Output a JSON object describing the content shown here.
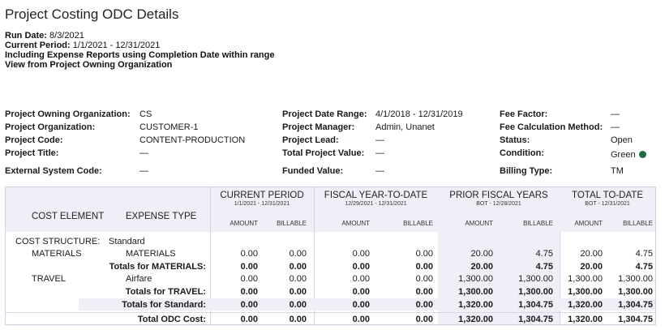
{
  "title": "Project Costing ODC Details",
  "run": {
    "run_date_label": "Run Date:",
    "run_date": "8/3/2021",
    "period_label": "Current Period:",
    "period": "1/1/2021 - 12/31/2021",
    "line3": "Including Expense Reports using Completion Date within range",
    "line4": "View from Project Owning Organization"
  },
  "info": [
    {
      "label": "Project Owning Organization:",
      "value": "CS"
    },
    {
      "label": "Project Organization:",
      "value": "CUSTOMER-1"
    },
    {
      "label": "Project Code:",
      "value": "CONTENT-PRODUCTION"
    },
    {
      "label": "Project Title:",
      "value": "—"
    },
    {
      "label": "External System Code:",
      "value": "—"
    },
    {
      "label": "Project Date Range:",
      "value": "4/1/2018 - 12/31/2019"
    },
    {
      "label": "Project Manager:",
      "value": "Admin, Unanet"
    },
    {
      "label": "Project Lead:",
      "value": "—"
    },
    {
      "label": "Total Project Value:",
      "value": "—"
    },
    {
      "label": "Funded Value:",
      "value": "—"
    },
    {
      "label": "Fee Factor:",
      "value": "—"
    },
    {
      "label": "Fee Calculation Method:",
      "value": "—"
    },
    {
      "label": "Status:",
      "value": "Open"
    },
    {
      "label": "Condition:",
      "value": "Green"
    },
    {
      "label": "Billing Type:",
      "value": "TM"
    }
  ],
  "colors": {
    "band": "#f0eff8",
    "condition_green": "#1e6b43"
  },
  "table": {
    "cost_element_header": "COST ELEMENT",
    "expense_type_header": "EXPENSE TYPE",
    "groups": [
      {
        "title": "CURRENT PERIOD",
        "range": "1/1/2021 - 12/31/2021"
      },
      {
        "title": "FISCAL YEAR-TO-DATE",
        "range": "12/29/2021 - 12/31/2021"
      },
      {
        "title": "PRIOR FISCAL YEARS",
        "range": "BOT - 12/28/2021"
      },
      {
        "title": "TOTAL TO-DATE",
        "range": "BOT - 12/31/2021"
      }
    ],
    "amount_label": "AMOUNT",
    "billable_label": "BILLABLE",
    "cost_structure_label": "COST STRUCTURE:",
    "cost_structure_value": "Standard",
    "rows": [
      {
        "element": "MATERIALS",
        "type": "MATERIALS",
        "bold": false,
        "values": [
          "0.00",
          "0.00",
          "0.00",
          "0.00",
          "20.00",
          "4.75",
          "20.00",
          "4.75"
        ]
      },
      {
        "element": "",
        "type": "Totals for MATERIALS:",
        "bold": true,
        "values": [
          "0.00",
          "0.00",
          "0.00",
          "0.00",
          "20.00",
          "4.75",
          "20.00",
          "4.75"
        ]
      },
      {
        "element": "TRAVEL",
        "type": "Airfare",
        "bold": false,
        "values": [
          "0.00",
          "0.00",
          "0.00",
          "0.00",
          "1,300.00",
          "1,300.00",
          "1,300.00",
          "1,300.00"
        ]
      },
      {
        "element": "",
        "type": "Totals for TRAVEL:",
        "bold": true,
        "values": [
          "0.00",
          "0.00",
          "0.00",
          "0.00",
          "1,300.00",
          "1,300.00",
          "1,300.00",
          "1,300.00"
        ]
      },
      {
        "element": "",
        "type": "Totals for Standard:",
        "bold": true,
        "values": [
          "0.00",
          "0.00",
          "0.00",
          "0.00",
          "1,320.00",
          "1,304.75",
          "1,320.00",
          "1,304.75"
        ]
      },
      {
        "element": "",
        "type": "Total ODC Cost:",
        "bold": true,
        "values": [
          "0.00",
          "0.00",
          "0.00",
          "0.00",
          "1,320.00",
          "1,304.75",
          "1,320.00",
          "1,304.75"
        ]
      }
    ]
  }
}
